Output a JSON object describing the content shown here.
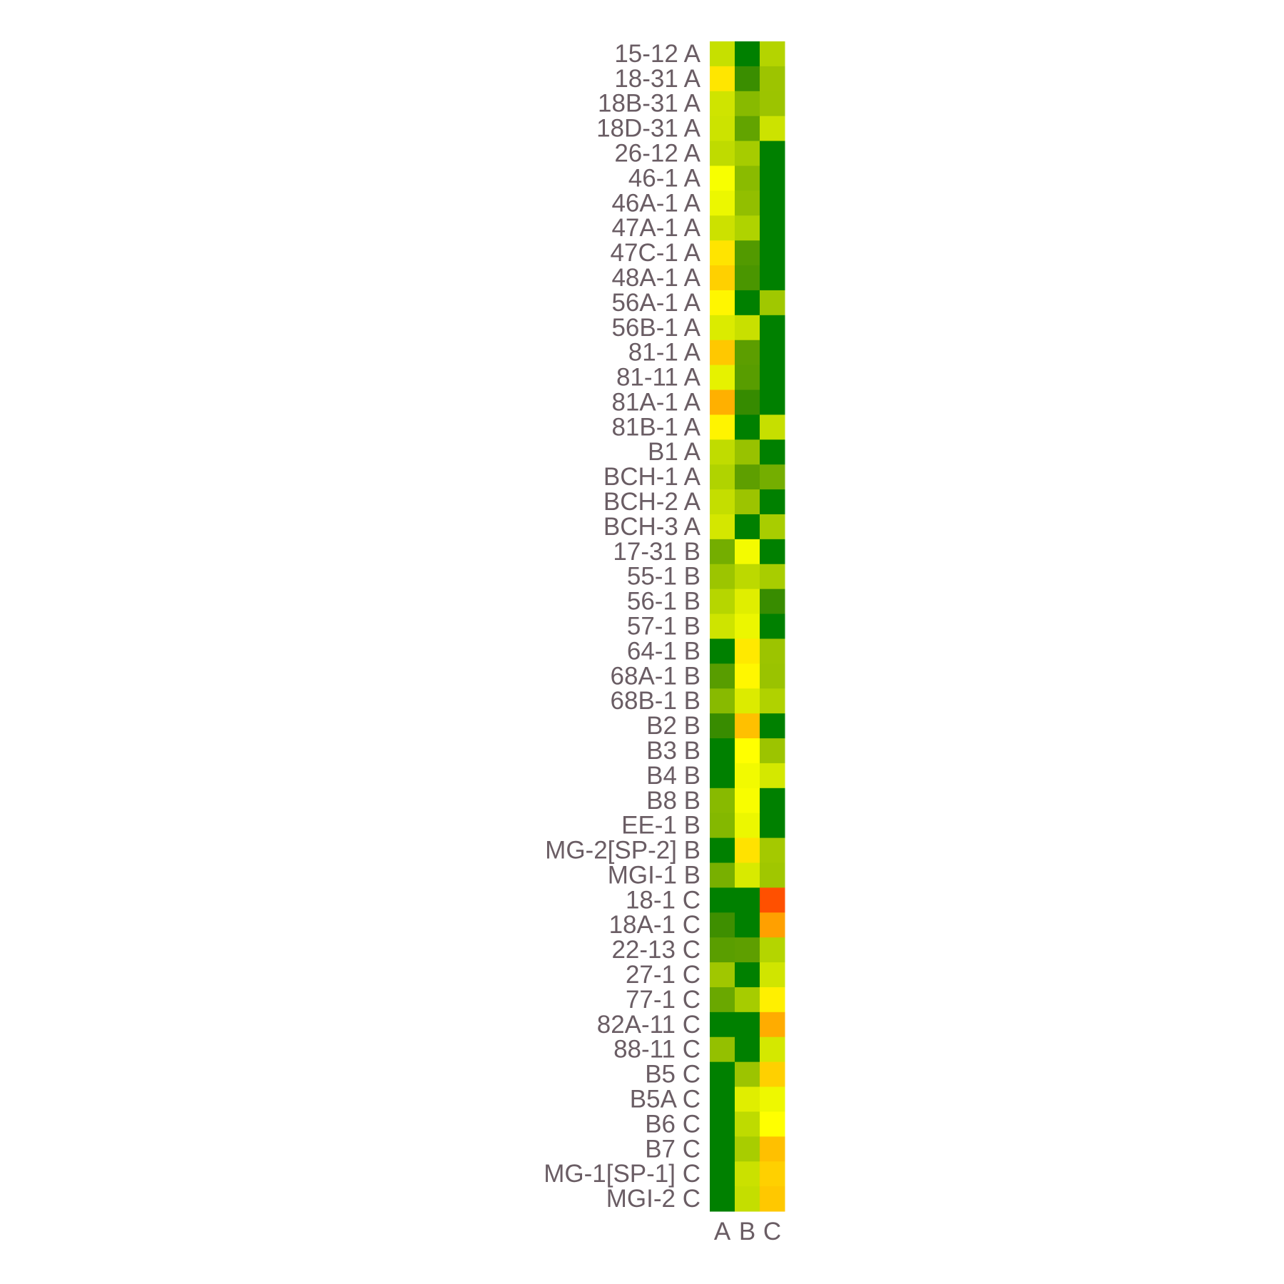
{
  "chart_data": {
    "type": "heatmap",
    "title": "",
    "xlabel": "",
    "ylabel": "",
    "columns": [
      "A",
      "B",
      "C"
    ],
    "rows": [
      "15-12 A",
      "18-31 A",
      "18B-31 A",
      "18D-31 A",
      "26-12 A",
      "46-1 A",
      "46A-1 A",
      "47A-1 A",
      "47C-1 A",
      "48A-1 A",
      "56A-1 A",
      "56B-1 A",
      "81-1 A",
      "81-11 A",
      "81A-1 A",
      "81B-1 A",
      "B1 A",
      "BCH-1 A",
      "BCH-2 A",
      "BCH-3 A",
      "17-31 B",
      "55-1 B",
      "56-1 B",
      "57-1 B",
      "64-1 B",
      "68A-1 B",
      "68B-1 B",
      "B2 B",
      "B3 B",
      "B4 B",
      "B8 B",
      "EE-1 B",
      "MG-2[SP-2] B",
      "MGI-1 B",
      "18-1 C",
      "18A-1 C",
      "22-13 C",
      "27-1 C",
      "77-1 C",
      "82A-11 C",
      "88-11 C",
      "B5 C",
      "B5A C",
      "B6 C",
      "B7 C",
      "MG-1[SP-1] C",
      "MGI-2 C"
    ],
    "cell_colors": [
      [
        "#c6e000",
        "#008000",
        "#b4d400"
      ],
      [
        "#ffe600",
        "#3a8e00",
        "#9dc400"
      ],
      [
        "#cfe400",
        "#88ba00",
        "#9cc400"
      ],
      [
        "#cce300",
        "#62a400",
        "#cce300"
      ],
      [
        "#bfdb00",
        "#a6cc00",
        "#008000"
      ],
      [
        "#f8ff00",
        "#8abb00",
        "#008000"
      ],
      [
        "#ecf700",
        "#92bf00",
        "#008000"
      ],
      [
        "#cce100",
        "#afd300",
        "#008000"
      ],
      [
        "#ffe400",
        "#529a00",
        "#008000"
      ],
      [
        "#ffd000",
        "#4a9600",
        "#008000"
      ],
      [
        "#fff600",
        "#008000",
        "#a0c800"
      ],
      [
        "#dbeb00",
        "#c8e000",
        "#008000"
      ],
      [
        "#ffc800",
        "#5c9e00",
        "#008000"
      ],
      [
        "#e6f200",
        "#589d00",
        "#008000"
      ],
      [
        "#ffb000",
        "#368b00",
        "#008000"
      ],
      [
        "#fff400",
        "#008000",
        "#c6df00"
      ],
      [
        "#c0dc00",
        "#98c200",
        "#008000"
      ],
      [
        "#b0d300",
        "#5e9f00",
        "#74ae00"
      ],
      [
        "#c4de00",
        "#9cc400",
        "#008000"
      ],
      [
        "#d4e700",
        "#008000",
        "#a8cd00"
      ],
      [
        "#74ae00",
        "#f4fb00",
        "#008000"
      ],
      [
        "#9cc500",
        "#bcd900",
        "#a8cd00"
      ],
      [
        "#b6d600",
        "#e0ee00",
        "#388c00"
      ],
      [
        "#cee400",
        "#ecf600",
        "#008000"
      ],
      [
        "#008000",
        "#ffe900",
        "#9cc400"
      ],
      [
        "#589d00",
        "#fff700",
        "#9ac300"
      ],
      [
        "#88ba00",
        "#dceb00",
        "#b0d200"
      ],
      [
        "#388c00",
        "#ffc000",
        "#008000"
      ],
      [
        "#008000",
        "#ffff00",
        "#9cc400"
      ],
      [
        "#008000",
        "#f2fa00",
        "#d4e800"
      ],
      [
        "#88ba00",
        "#f8fd00",
        "#008000"
      ],
      [
        "#84b800",
        "#ecf700",
        "#008000"
      ],
      [
        "#008000",
        "#ffe200",
        "#a4c900"
      ],
      [
        "#78b000",
        "#d8ea00",
        "#a0c700"
      ],
      [
        "#008000",
        "#008000",
        "#ff5000"
      ],
      [
        "#3e8f00",
        "#008000",
        "#ffa000"
      ],
      [
        "#5a9e00",
        "#5e9f00",
        "#b4d500"
      ],
      [
        "#a0c700",
        "#008000",
        "#d0e500"
      ],
      [
        "#6aa800",
        "#a6cc00",
        "#fff000"
      ],
      [
        "#008000",
        "#008000",
        "#ffac00"
      ],
      [
        "#94c000",
        "#008000",
        "#d4e800"
      ],
      [
        "#008000",
        "#9cc400",
        "#ffd000"
      ],
      [
        "#008000",
        "#e0ee00",
        "#eef800"
      ],
      [
        "#008000",
        "#bedb00",
        "#ffff00"
      ],
      [
        "#008000",
        "#a8cd00",
        "#ffc000"
      ],
      [
        "#008000",
        "#cae100",
        "#ffd000"
      ],
      [
        "#008000",
        "#c4de00",
        "#ffc800"
      ]
    ],
    "legend": "none",
    "grid": false
  }
}
